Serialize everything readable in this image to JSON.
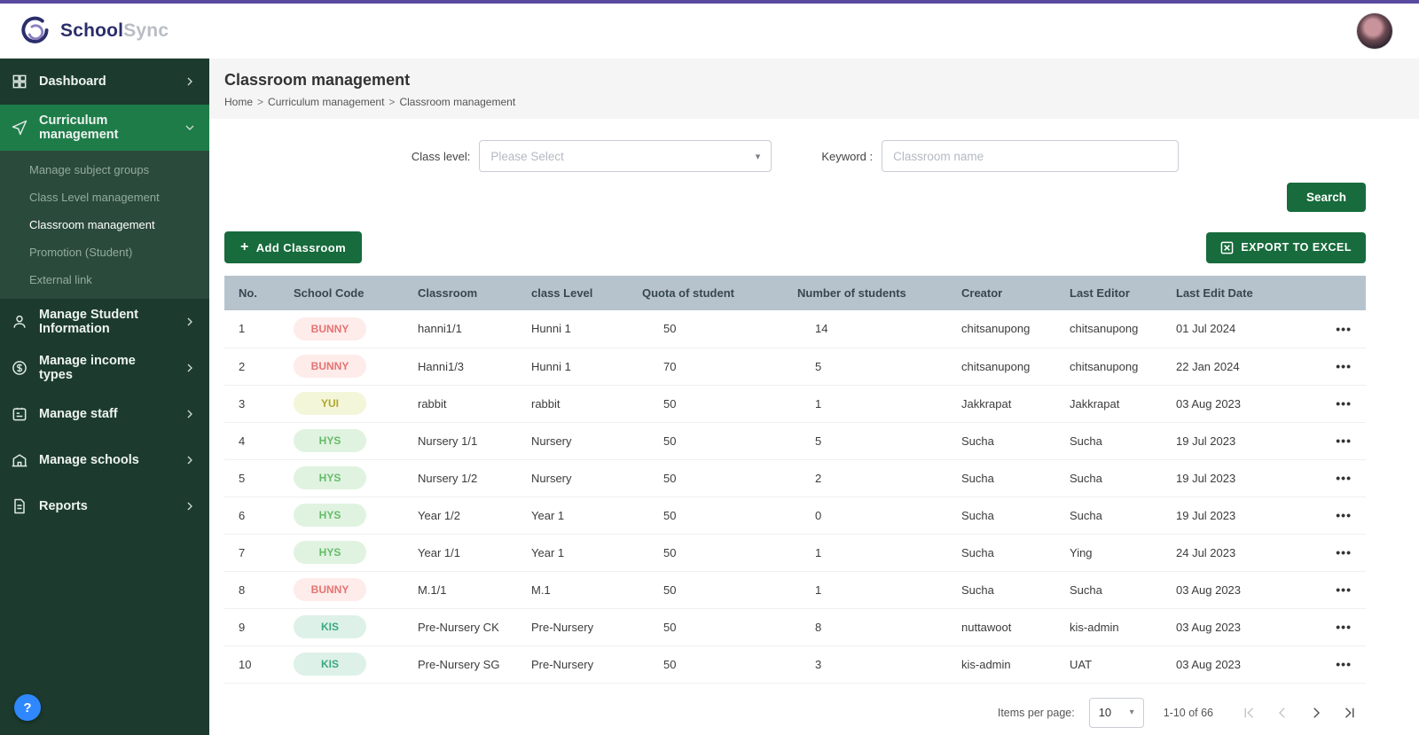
{
  "colors": {
    "accent_green": "#176b3c",
    "topbar_accent": "#5a4a9f",
    "table_header_bg": "#b6c3cd"
  },
  "brand": {
    "name_primary": "School",
    "name_secondary": "Sync"
  },
  "topbar": {
    "avatar": "user-profile-photo"
  },
  "sidebar": {
    "active_child": "Classroom management",
    "items": [
      {
        "label": "Dashboard",
        "icon": "dashboard-grid",
        "expanded": false
      },
      {
        "label": "Curriculum management",
        "icon": "curriculum-send",
        "expanded": true,
        "children": [
          "Manage subject groups",
          "Class Level management",
          "Classroom management",
          "Promotion (Student)",
          "External link"
        ]
      },
      {
        "label": "Manage Student Information",
        "icon": "student-person",
        "expanded": false
      },
      {
        "label": "Manage income types",
        "icon": "income-coin",
        "expanded": false
      },
      {
        "label": "Manage staff",
        "icon": "staff-badge",
        "expanded": false
      },
      {
        "label": "Manage schools",
        "icon": "school-building",
        "expanded": false
      },
      {
        "label": "Reports",
        "icon": "report-document",
        "expanded": false
      }
    ],
    "help_label": "?"
  },
  "page": {
    "title": "Classroom management",
    "breadcrumb": [
      "Home",
      "Curriculum management",
      "Classroom management"
    ]
  },
  "filters": {
    "class_level_label": "Class level:",
    "class_level_placeholder": "Please Select",
    "keyword_label": "Keyword :",
    "keyword_placeholder": "Classroom name",
    "search_label": "Search"
  },
  "actions": {
    "add_classroom_label": "Add Classroom",
    "export_label": "EXPORT TO EXCEL"
  },
  "pill_colors": {
    "BUNNY": {
      "bg": "#fdecea",
      "text": "#e57373"
    },
    "YUI": {
      "bg": "#f3f6d8",
      "text": "#b0a72f"
    },
    "HYS": {
      "bg": "#e0f3e0",
      "text": "#66bb6a"
    },
    "KIS": {
      "bg": "#ddf1e8",
      "text": "#3aa884"
    }
  },
  "table": {
    "headers": [
      "No.",
      "School Code",
      "Classroom",
      "class Level",
      "Quota of student",
      "Number of students",
      "Creator",
      "Last Editor",
      "Last Edit Date"
    ],
    "rows": [
      {
        "no": "1",
        "school_code": "BUNNY",
        "classroom": "hanni1/1",
        "class_level": "Hunni 1",
        "quota": "50",
        "students": "14",
        "creator": "chitsanupong",
        "last_editor": "chitsanupong",
        "last_edit_date": "01 Jul 2024"
      },
      {
        "no": "2",
        "school_code": "BUNNY",
        "classroom": "Hanni1/3",
        "class_level": "Hunni 1",
        "quota": "70",
        "students": "5",
        "creator": "chitsanupong",
        "last_editor": "chitsanupong",
        "last_edit_date": "22 Jan 2024"
      },
      {
        "no": "3",
        "school_code": "YUI",
        "classroom": "rabbit",
        "class_level": "rabbit",
        "quota": "50",
        "students": "1",
        "creator": "Jakkrapat",
        "last_editor": "Jakkrapat",
        "last_edit_date": "03 Aug 2023"
      },
      {
        "no": "4",
        "school_code": "HYS",
        "classroom": "Nursery 1/1",
        "class_level": "Nursery",
        "quota": "50",
        "students": "5",
        "creator": "Sucha",
        "last_editor": "Sucha",
        "last_edit_date": "19 Jul 2023"
      },
      {
        "no": "5",
        "school_code": "HYS",
        "classroom": "Nursery 1/2",
        "class_level": "Nursery",
        "quota": "50",
        "students": "2",
        "creator": "Sucha",
        "last_editor": "Sucha",
        "last_edit_date": "19 Jul 2023"
      },
      {
        "no": "6",
        "school_code": "HYS",
        "classroom": "Year 1/2",
        "class_level": "Year 1",
        "quota": "50",
        "students": "0",
        "creator": "Sucha",
        "last_editor": "Sucha",
        "last_edit_date": "19 Jul 2023"
      },
      {
        "no": "7",
        "school_code": "HYS",
        "classroom": "Year 1/1",
        "class_level": "Year 1",
        "quota": "50",
        "students": "1",
        "creator": "Sucha",
        "last_editor": "Ying",
        "last_edit_date": "24 Jul 2023"
      },
      {
        "no": "8",
        "school_code": "BUNNY",
        "classroom": "M.1/1",
        "class_level": "M.1",
        "quota": "50",
        "students": "1",
        "creator": "Sucha",
        "last_editor": "Sucha",
        "last_edit_date": "03 Aug 2023"
      },
      {
        "no": "9",
        "school_code": "KIS",
        "classroom": "Pre-Nursery CK",
        "class_level": "Pre-Nursery",
        "quota": "50",
        "students": "8",
        "creator": "nuttawoot",
        "last_editor": "kis-admin",
        "last_edit_date": "03 Aug 2023"
      },
      {
        "no": "10",
        "school_code": "KIS",
        "classroom": "Pre-Nursery SG",
        "class_level": "Pre-Nursery",
        "quota": "50",
        "students": "3",
        "creator": "kis-admin",
        "last_editor": "UAT",
        "last_edit_date": "03 Aug 2023"
      }
    ]
  },
  "pagination": {
    "items_per_page_label": "Items per page:",
    "items_per_page_value": "10",
    "range_text": "1-10 of 66"
  }
}
